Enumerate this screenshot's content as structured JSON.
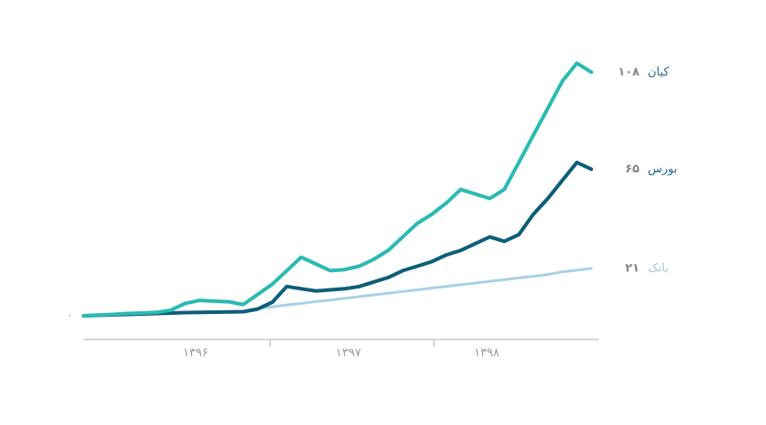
{
  "chart_data": {
    "type": "line",
    "start_label": "۰",
    "x_labels": [
      "۱۳۹۶",
      "۱۳۹۷",
      "۱۳۹۸"
    ],
    "ylim": [
      0,
      115
    ],
    "series": [
      {
        "name": "بانک",
        "color": "#a9d2e3",
        "values": [
          null,
          null,
          null,
          null,
          null,
          null,
          null,
          null,
          null,
          null,
          null,
          null,
          3.2,
          4,
          4.8,
          5.5,
          6.3,
          7,
          7.8,
          8.5,
          9.3,
          10,
          10.8,
          11.5,
          12.3,
          13,
          13.8,
          14.5,
          15.3,
          16,
          16.8,
          17.5,
          18.3,
          19.5,
          20.2,
          21
        ],
        "value_labels": [
          null,
          null,
          null,
          null,
          null,
          null,
          null,
          null,
          null,
          null,
          null,
          null,
          null,
          null,
          null,
          null,
          null,
          null,
          null,
          null,
          null,
          null,
          null,
          null,
          null,
          null,
          null,
          null,
          null,
          null,
          null,
          null,
          null,
          null,
          null,
          "۲۱"
        ]
      },
      {
        "name": "بورس",
        "color": "#0d5e78",
        "values": [
          0,
          0.2,
          0.4,
          0.6,
          0.8,
          1,
          1.2,
          1.4,
          1.5,
          1.6,
          1.7,
          1.8,
          3,
          6,
          13,
          12,
          11,
          11.5,
          12,
          13,
          15,
          17,
          20,
          22,
          24,
          27,
          29,
          32,
          35,
          33,
          36,
          45,
          52,
          60,
          68,
          65
        ],
        "value_labels": [
          null,
          null,
          null,
          null,
          null,
          null,
          null,
          null,
          null,
          null,
          null,
          null,
          null,
          null,
          null,
          null,
          null,
          null,
          null,
          null,
          null,
          null,
          null,
          null,
          null,
          null,
          null,
          null,
          null,
          null,
          null,
          null,
          null,
          null,
          null,
          "۶۵"
        ]
      },
      {
        "name": "کیان",
        "color": "#2bbab2",
        "values": [
          0,
          0.3,
          0.6,
          1,
          1.2,
          1.5,
          2.5,
          5.5,
          6.8,
          6.5,
          6.2,
          5,
          9.5,
          14,
          20,
          26,
          23,
          20,
          20.5,
          22,
          25,
          29,
          35,
          41,
          45,
          50,
          56,
          54,
          52,
          56,
          68,
          80,
          92,
          104,
          112,
          108
        ],
        "value_labels": [
          null,
          null,
          null,
          null,
          null,
          null,
          null,
          null,
          null,
          null,
          null,
          null,
          null,
          null,
          null,
          null,
          null,
          null,
          null,
          null,
          null,
          null,
          null,
          null,
          null,
          null,
          null,
          null,
          null,
          null,
          null,
          null,
          null,
          null,
          null,
          "۱۰۸"
        ]
      }
    ]
  }
}
